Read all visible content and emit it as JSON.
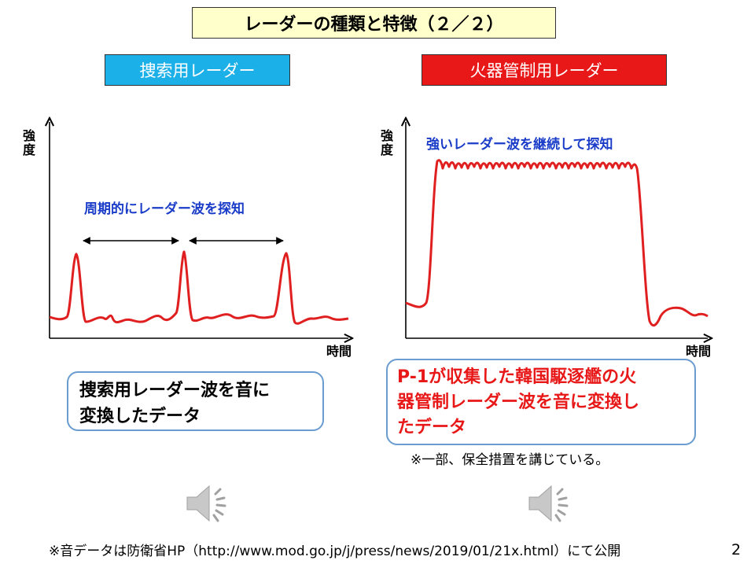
{
  "slide": {
    "title": "レーダーの種類と特徴（２／２）",
    "left_label": "捜索用レーダー",
    "right_label": "火器管制用レーダー",
    "page_number": "2",
    "footer": "※音データは防衛省HP（http://www.mod.go.jp/j/press/news/2019/01/21x.html）にて公開"
  },
  "left_panel": {
    "y_axis_label_1": "強",
    "y_axis_label_2": "度",
    "x_axis_label": "時間",
    "annotation": "周期的にレーダー波を探知",
    "note_line1": "捜索用レーダー波を音に",
    "note_line2": "変換したデータ"
  },
  "right_panel": {
    "y_axis_label_1": "強",
    "y_axis_label_2": "度",
    "x_axis_label": "時間",
    "annotation": "強いレーダー波を継続して探知",
    "note_line1": "P-1が収集した韓国駆逐艦の火",
    "note_line2": "器管制レーダー波を音に変換し",
    "note_line3": "たデータ",
    "sub_note": "※一部、保全措置を講じている。"
  },
  "colors": {
    "accent_blue": "#1bb0e8",
    "accent_red": "#e81818",
    "title_bg": "#ffffcc",
    "annotation_blue": "#1a3cc8",
    "note_border": "#6a9cd0"
  },
  "icons": [
    "speaker-icon",
    "speaker-icon"
  ]
}
